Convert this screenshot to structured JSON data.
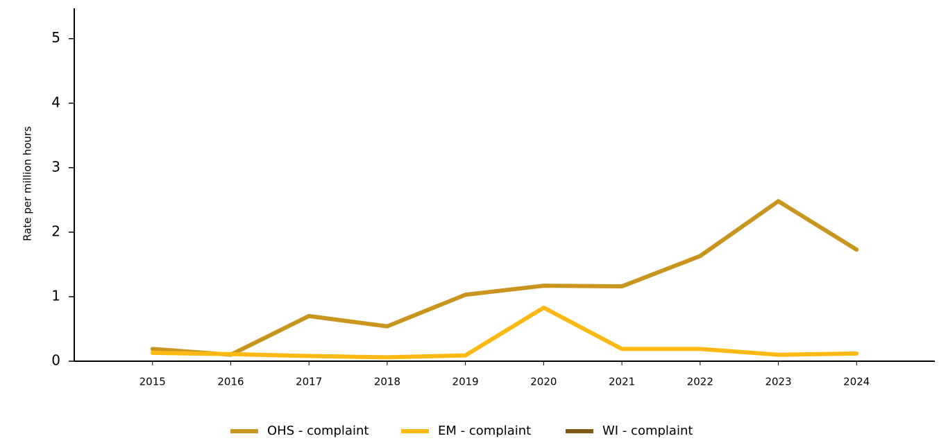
{
  "chart_data": {
    "type": "line",
    "y_label": "Rate per million hours",
    "x": [
      2015,
      2016,
      2017,
      2018,
      2019,
      2020,
      2021,
      2022,
      2023,
      2024
    ],
    "xlim": [
      2014,
      2025
    ],
    "xticks": [
      2015,
      2016,
      2017,
      2018,
      2019,
      2020,
      2021,
      2022,
      2023,
      2024
    ],
    "ylim": [
      0,
      5.47
    ],
    "yticks": [
      0,
      1,
      2,
      3,
      4,
      5
    ],
    "legend": "bottom",
    "series": [
      {
        "name": "OHS - complaint",
        "color": "#c8961e",
        "values": [
          0.19,
          0.1,
          0.7,
          0.54,
          1.03,
          1.17,
          1.16,
          1.63,
          2.48,
          1.73
        ]
      },
      {
        "name": "EM - complaint",
        "color": "#fdb913",
        "values": [
          0.13,
          0.11,
          0.08,
          0.06,
          0.09,
          0.83,
          0.19,
          0.19,
          0.1,
          0.12
        ]
      },
      {
        "name": "WI - complaint",
        "color": "#7d5a13",
        "values": [
          null,
          null,
          null,
          null,
          null,
          null,
          null,
          null,
          null,
          null
        ]
      }
    ]
  }
}
